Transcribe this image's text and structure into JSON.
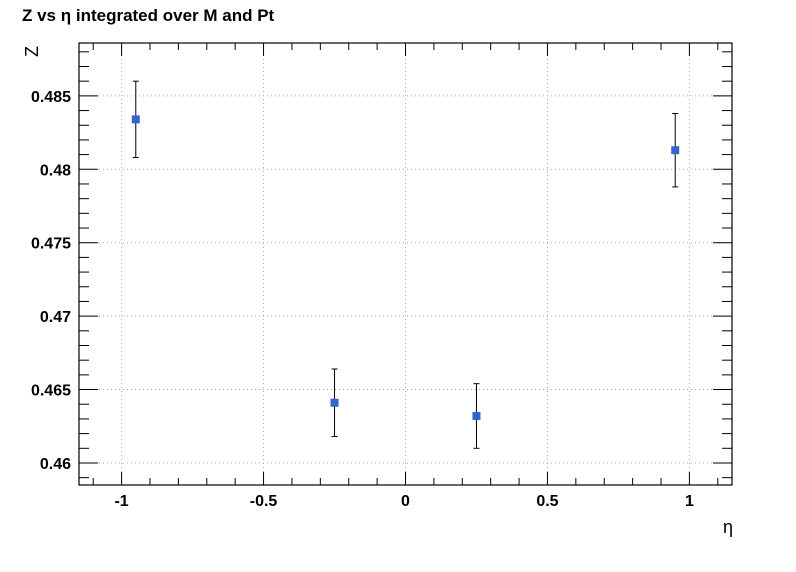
{
  "chart_data": {
    "type": "scatter",
    "title": "Z vs η integrated over M and Pt",
    "xlabel": "η",
    "ylabel": "Z",
    "xlim": [
      -1.15,
      1.15
    ],
    "ylim": [
      0.4585,
      0.4886
    ],
    "grid": true,
    "x_ticks": [
      -1,
      -0.5,
      0,
      0.5,
      1
    ],
    "x_tick_labels": [
      "-1",
      "-0.5",
      "0",
      "0.5",
      "1"
    ],
    "y_ticks": [
      0.46,
      0.465,
      0.47,
      0.475,
      0.48,
      0.485
    ],
    "y_tick_labels": [
      "0.46",
      "0.465",
      "0.47",
      "0.475",
      "0.48",
      "0.485"
    ],
    "x_minor_step": 0.1,
    "y_minor_step": 0.001,
    "marker_color": "#3366cc",
    "points": [
      {
        "x": -0.95,
        "y": 0.4834,
        "err": 0.0026
      },
      {
        "x": -0.25,
        "y": 0.4641,
        "err": 0.0023
      },
      {
        "x": 0.25,
        "y": 0.4632,
        "err": 0.0022
      },
      {
        "x": 0.95,
        "y": 0.4813,
        "err": 0.0025
      }
    ]
  }
}
